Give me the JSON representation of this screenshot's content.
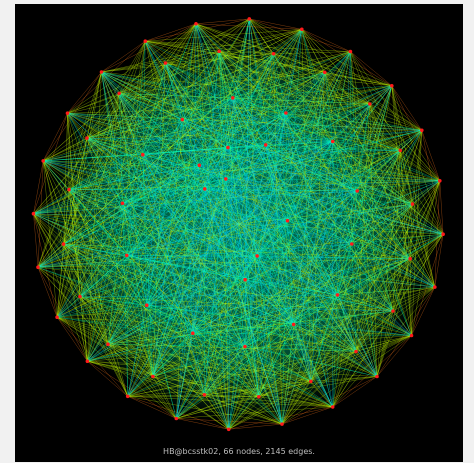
{
  "caption": "HB@bcsstk02, 66 nodes, 2145 edges.",
  "graph": {
    "nodes": 66,
    "edges": 2145
  },
  "colors": {
    "page_background": "#f1f1f1",
    "canvas_background": "#000000",
    "edge_outer": "#ff7a1a",
    "edge_mid": "#c9ff00",
    "edge_inner": "#00ffb0",
    "edge_core": "#00d6ff",
    "node": "#ff1a1a",
    "caption": "#bdbdbd"
  }
}
